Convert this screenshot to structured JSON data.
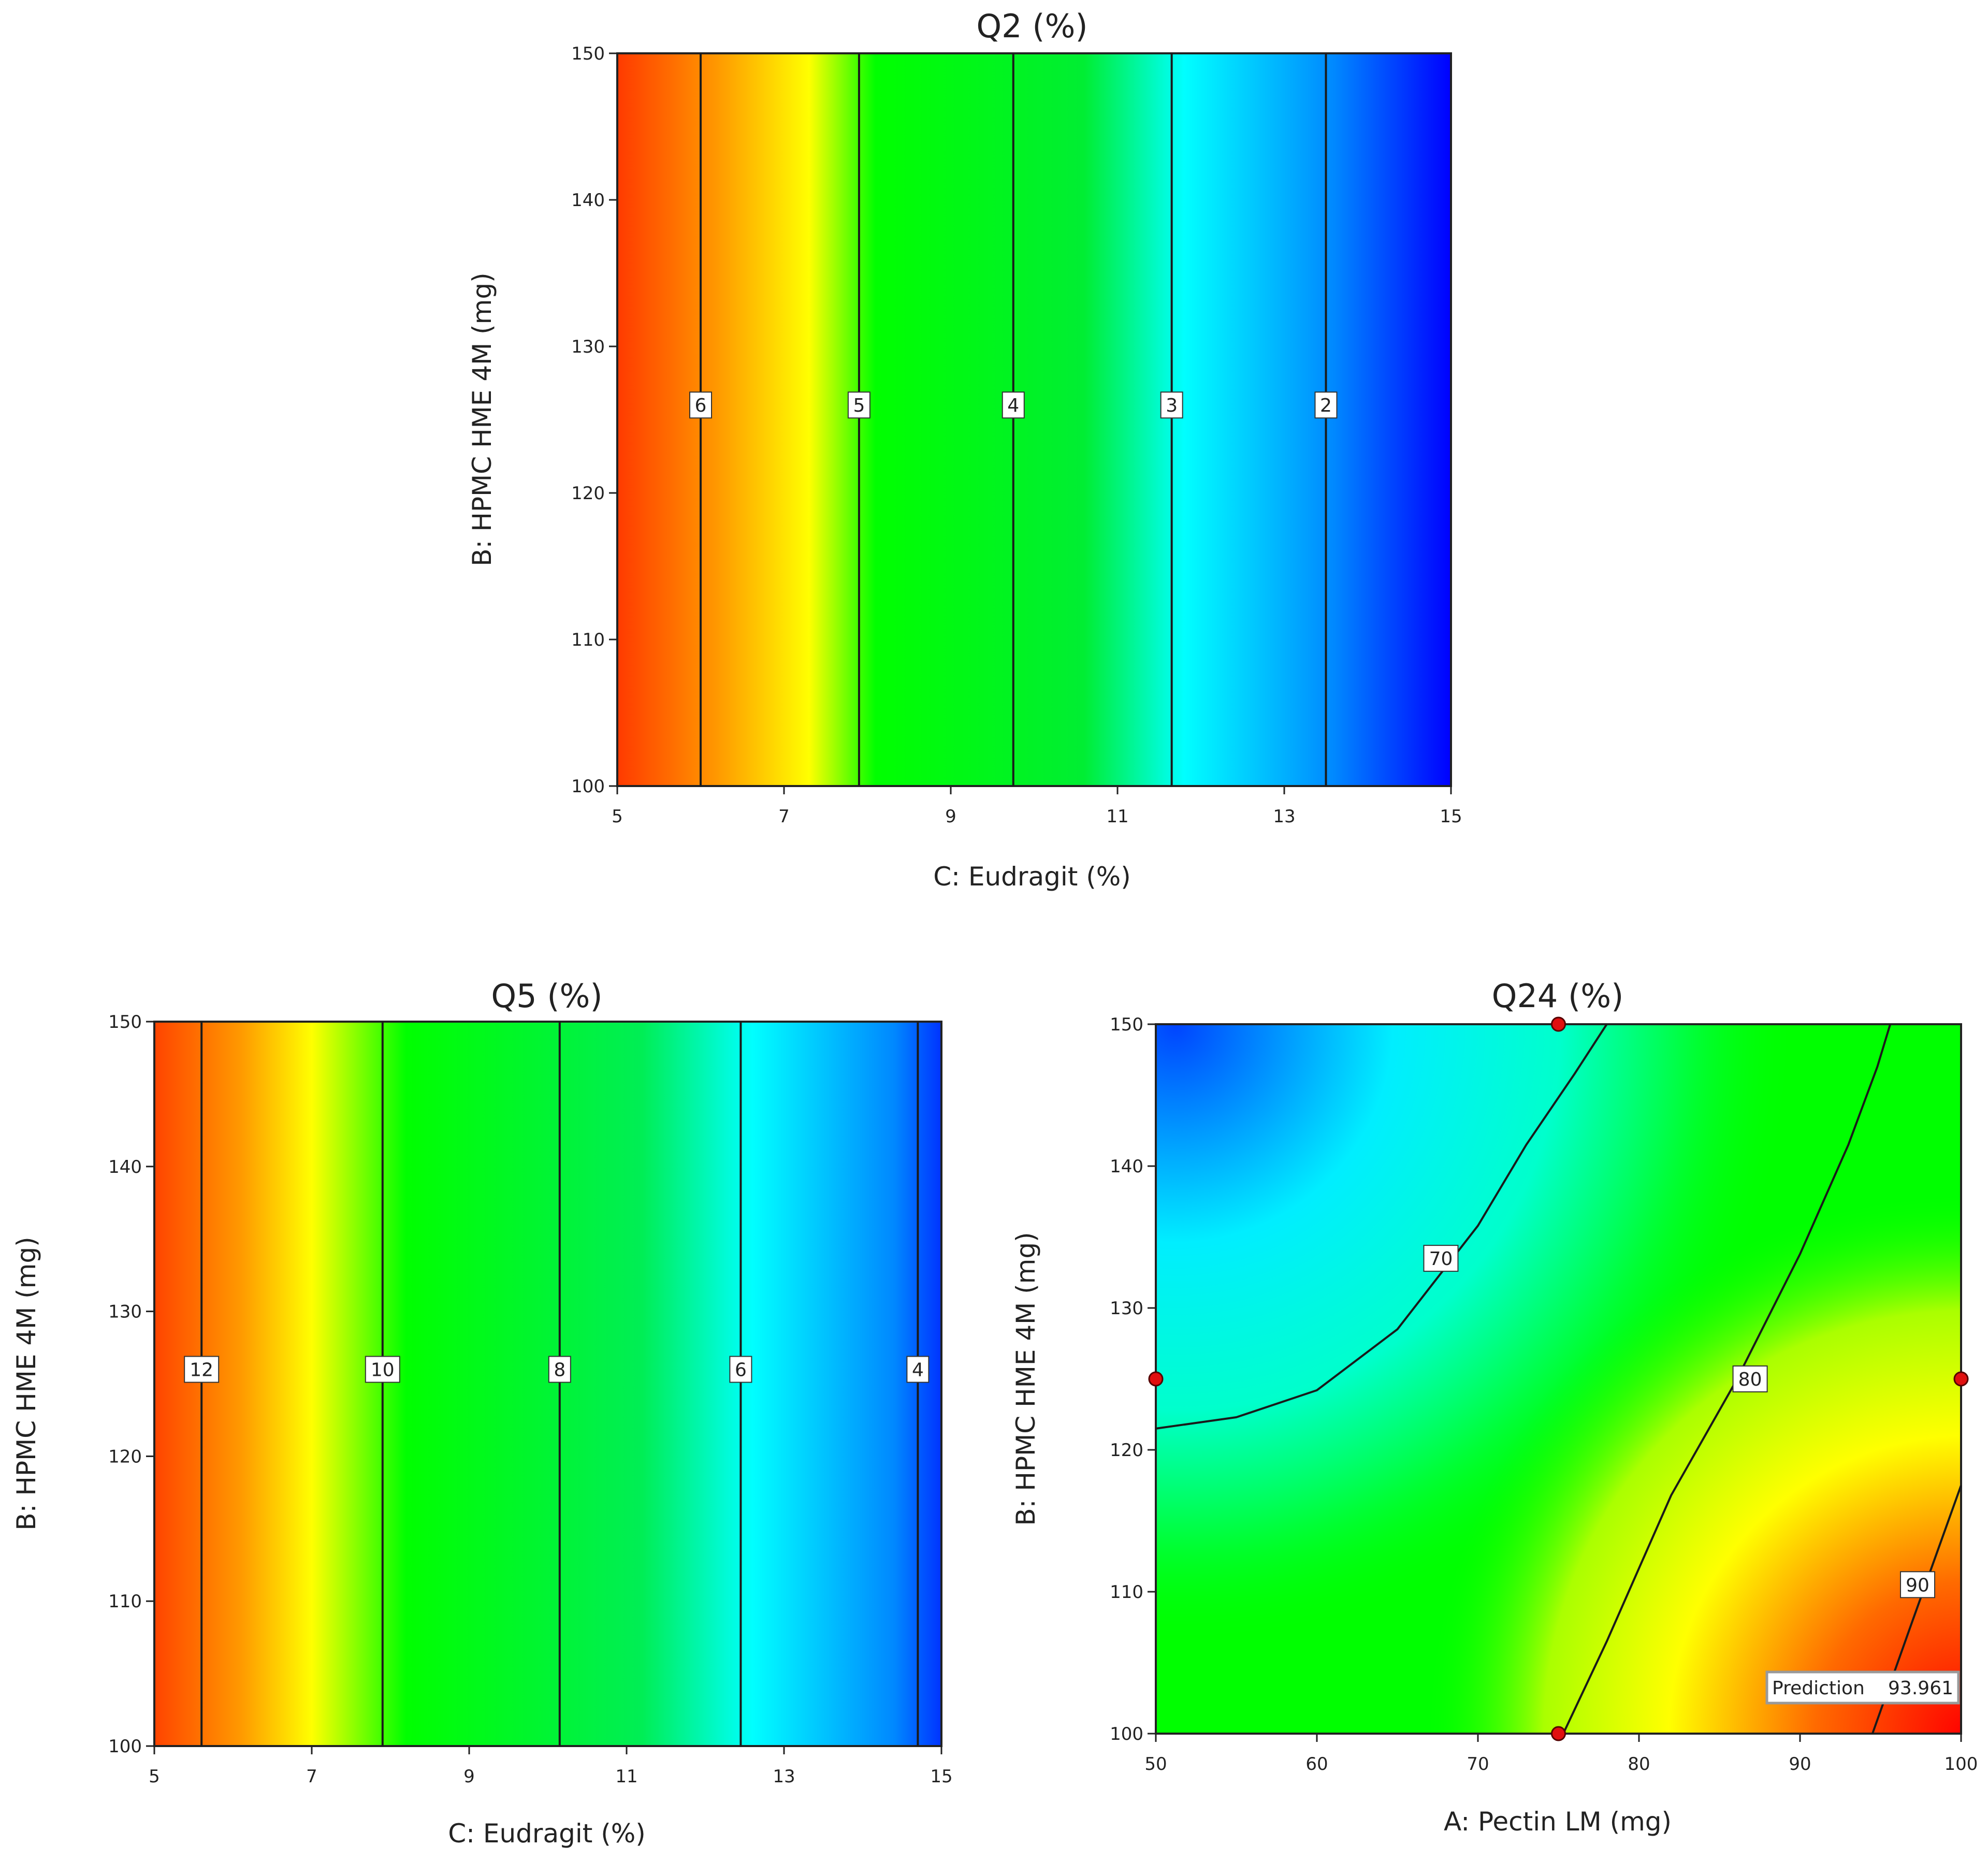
{
  "chart_data": [
    {
      "type": "contour",
      "title": "Q2 (%)",
      "xlabel": "C: Eudragit (%)",
      "ylabel": "B: HPMC HME 4M (mg)",
      "xlim": [
        5,
        15
      ],
      "ylim": [
        100,
        150
      ],
      "xticks": [
        5,
        7,
        9,
        11,
        13,
        15
      ],
      "yticks": [
        100,
        110,
        120,
        130,
        140,
        150
      ],
      "gradient": [
        {
          "x": 5,
          "color": "#ff3a00"
        },
        {
          "x": 6.2,
          "color": "#ff9900"
        },
        {
          "x": 7.3,
          "color": "#ffff00"
        },
        {
          "x": 8.1,
          "color": "#00ff00"
        },
        {
          "x": 10.6,
          "color": "#00ee33"
        },
        {
          "x": 11.8,
          "color": "#00ffff"
        },
        {
          "x": 13.6,
          "color": "#0088ff"
        },
        {
          "x": 15,
          "color": "#0000ff"
        }
      ],
      "contours": [
        {
          "label": "6",
          "x": 6.0,
          "label_y": 126
        },
        {
          "label": "5",
          "x": 7.9,
          "label_y": 126
        },
        {
          "label": "4",
          "x": 9.75,
          "label_y": 126
        },
        {
          "label": "3",
          "x": 11.65,
          "label_y": 126
        },
        {
          "label": "2",
          "x": 13.5,
          "label_y": 126
        }
      ]
    },
    {
      "type": "contour",
      "title": "Q5 (%)",
      "xlabel": "C: Eudragit (%)",
      "ylabel": "B: HPMC HME 4M (mg)",
      "xlim": [
        5,
        15
      ],
      "ylim": [
        100,
        150
      ],
      "xticks": [
        5,
        7,
        9,
        11,
        13,
        15
      ],
      "yticks": [
        100,
        110,
        120,
        130,
        140,
        150
      ],
      "gradient": [
        {
          "x": 5,
          "color": "#ff4400"
        },
        {
          "x": 6.1,
          "color": "#ff9900"
        },
        {
          "x": 7.0,
          "color": "#ffff00"
        },
        {
          "x": 8.2,
          "color": "#00ff00"
        },
        {
          "x": 11.2,
          "color": "#00ee55"
        },
        {
          "x": 12.6,
          "color": "#00ffff"
        },
        {
          "x": 14.4,
          "color": "#0088ff"
        },
        {
          "x": 15,
          "color": "#0033ff"
        }
      ],
      "contours": [
        {
          "label": "12",
          "x": 5.6,
          "label_y": 126
        },
        {
          "label": "10",
          "x": 7.9,
          "label_y": 126
        },
        {
          "label": "8",
          "x": 10.15,
          "label_y": 126
        },
        {
          "label": "6",
          "x": 12.45,
          "label_y": 126
        },
        {
          "label": "4",
          "x": 14.7,
          "label_y": 126
        }
      ]
    },
    {
      "type": "contour",
      "title": "Q24 (%)",
      "xlabel": "A: Pectin LM (mg)",
      "ylabel": "B: HPMC HME 4M (mg)",
      "xlim": [
        50,
        100
      ],
      "ylim": [
        100,
        150
      ],
      "xticks": [
        50,
        60,
        70,
        80,
        90,
        100
      ],
      "yticks": [
        100,
        110,
        120,
        130,
        140,
        150
      ],
      "contours": [
        {
          "label": "70",
          "points": [
            [
              50,
              121.5
            ],
            [
              55,
              122.3
            ],
            [
              60,
              124.2
            ],
            [
              65,
              128.5
            ],
            [
              70,
              135.8
            ],
            [
              73,
              141.5
            ],
            [
              76,
              146.5
            ],
            [
              78,
              150
            ]
          ],
          "label_pos": [
            67.7,
            133.5
          ]
        },
        {
          "label": "80",
          "points": [
            [
              75.3,
              100
            ],
            [
              78,
              106.5
            ],
            [
              82,
              116.8
            ],
            [
              86,
              124.8
            ],
            [
              90,
              133.8
            ],
            [
              93,
              141.5
            ],
            [
              94.8,
              147
            ],
            [
              95.6,
              150
            ]
          ],
          "label_pos": [
            86.9,
            125
          ]
        },
        {
          "label": "90",
          "points": [
            [
              94.5,
              100
            ],
            [
              97,
              108
            ],
            [
              100,
              117.5
            ]
          ],
          "label_pos": [
            97.3,
            110.5
          ]
        }
      ],
      "design_points": [
        [
          75,
          150
        ],
        [
          50,
          125
        ],
        [
          100,
          125
        ],
        [
          75,
          100
        ]
      ],
      "prediction": {
        "label": "Prediction",
        "value": "93.961",
        "x": 100,
        "y": 100
      }
    }
  ]
}
